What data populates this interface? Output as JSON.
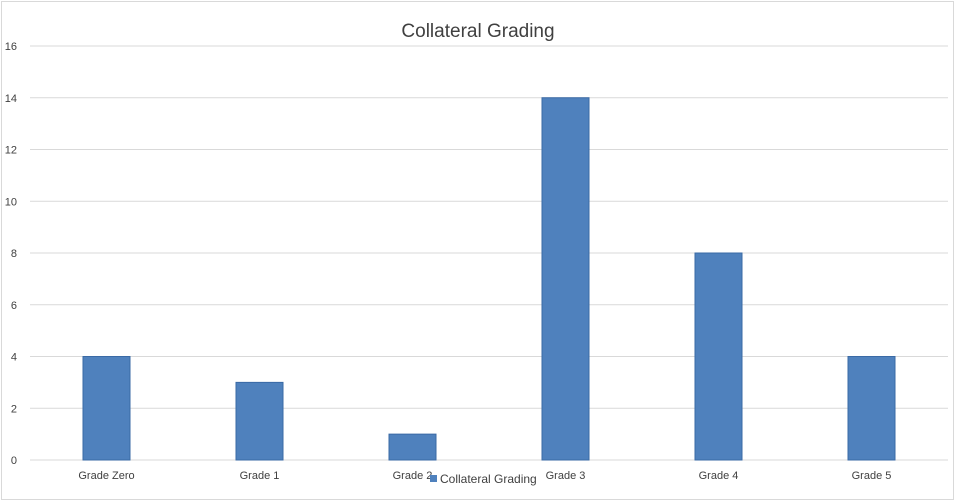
{
  "chart_data": {
    "type": "bar",
    "title": "Collateral Grading",
    "categories": [
      "Grade Zero",
      "Grade 1",
      "Grade 2",
      "Grade 3",
      "Grade 4",
      "Grade 5"
    ],
    "series": [
      {
        "name": "Collateral Grading",
        "values": [
          4,
          3,
          1,
          14,
          8,
          4
        ]
      }
    ],
    "ylim": [
      0,
      16
    ],
    "yticks": [
      "0",
      "2",
      "4",
      "6",
      "8",
      "10",
      "12",
      "14",
      "16"
    ],
    "xlabel": "",
    "ylabel": "",
    "grid": true,
    "legend": "bottom-center",
    "colors": {
      "bar": "#4f81bd",
      "bar_edge": "#3a6aa5",
      "grid": "#d9d9d9",
      "text": "#404040"
    }
  }
}
